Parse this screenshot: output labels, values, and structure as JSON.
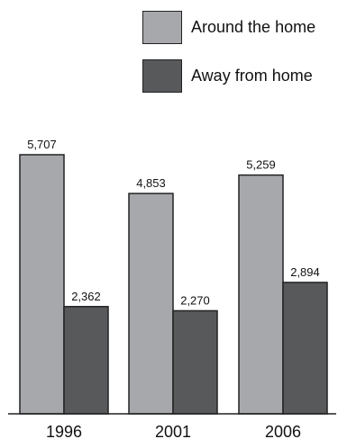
{
  "chart_data": {
    "type": "bar",
    "categories": [
      "1996",
      "2001",
      "2006"
    ],
    "series": [
      {
        "name": "Around the home",
        "values": [
          5707,
          4853,
          5259
        ],
        "value_labels": [
          "5,707",
          "4,853",
          "5,259"
        ],
        "color": "#a7a8ac"
      },
      {
        "name": "Away from home",
        "values": [
          2362,
          2270,
          2894
        ],
        "value_labels": [
          "2,362",
          "2,270",
          "2,894"
        ],
        "color": "#58595b"
      }
    ],
    "title": "",
    "xlabel": "",
    "ylabel": "",
    "ylim": [
      0,
      6000
    ],
    "grid": false,
    "legend_position": "top-right"
  }
}
